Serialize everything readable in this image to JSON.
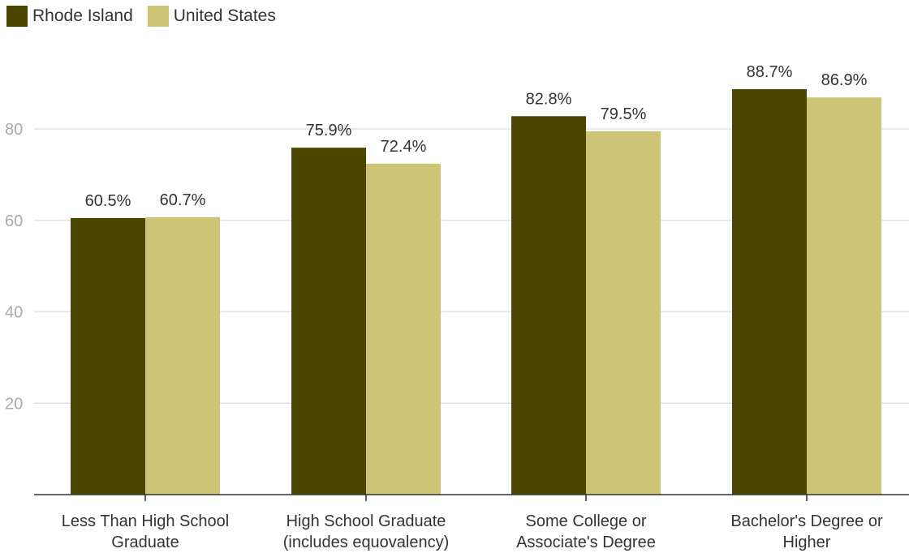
{
  "chart_data": {
    "type": "bar",
    "categories": [
      [
        "Less Than High School",
        "Graduate"
      ],
      [
        "High School Graduate",
        "(includes equovalency)"
      ],
      [
        "Some College or",
        "Associate's Degree"
      ],
      [
        "Bachelor's Degree or",
        "Higher"
      ]
    ],
    "series": [
      {
        "name": "Rhode Island",
        "color": "#4b4700",
        "values": [
          60.5,
          75.9,
          82.8,
          88.7
        ],
        "labels": [
          "60.5%",
          "75.9%",
          "82.8%",
          "88.7%"
        ]
      },
      {
        "name": "United States",
        "color": "#cdc476",
        "values": [
          60.7,
          72.4,
          79.5,
          86.9
        ],
        "labels": [
          "60.7%",
          "72.4%",
          "79.5%",
          "86.9%"
        ]
      }
    ],
    "yticks": [
      20,
      40,
      60,
      80
    ],
    "ylim": [
      0,
      100
    ],
    "grid": true,
    "legend_position": "top-left"
  }
}
